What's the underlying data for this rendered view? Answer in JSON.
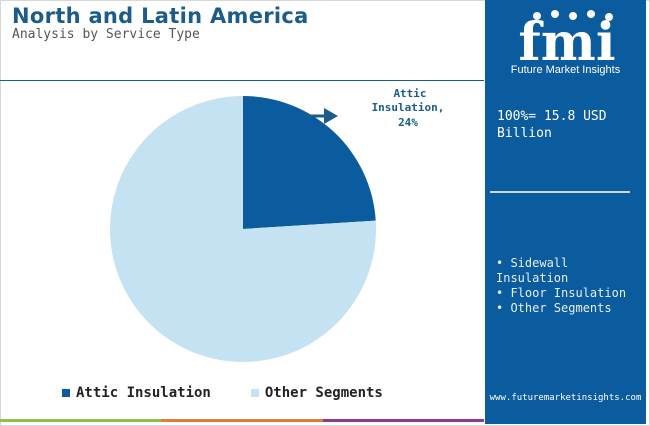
{
  "header": {
    "title": "North and Latin America",
    "subtitle": "Analysis by Service Type"
  },
  "sidebar": {
    "logo_text": "fmi",
    "logo_caption": "Future Market Insights",
    "total_label": "100%= 15.8 USD Billion",
    "segments": [
      "• Sidewall Insulation",
      "• Floor Insulation",
      "• Other Segments"
    ],
    "url": "www.futuremarketinsights.com"
  },
  "colors": {
    "dark_blue": "#0b5c9e",
    "light_blue": "#c5e2f2",
    "title_blue": "#1b5c8a",
    "bar_green": "#8bc34a",
    "bar_orange": "#e07b39",
    "bar_purple": "#8e3a8f"
  },
  "chart_data": {
    "type": "pie",
    "categories": [
      "Attic Insulation",
      "Other Segments"
    ],
    "values": [
      24,
      76
    ],
    "unit": "%",
    "annotation": {
      "line1": "Attic",
      "line2": "Insulation,",
      "line3": "24%"
    },
    "legend_position": "bottom",
    "series_colors": [
      "#0b5c9e",
      "#c5e2f2"
    ]
  }
}
